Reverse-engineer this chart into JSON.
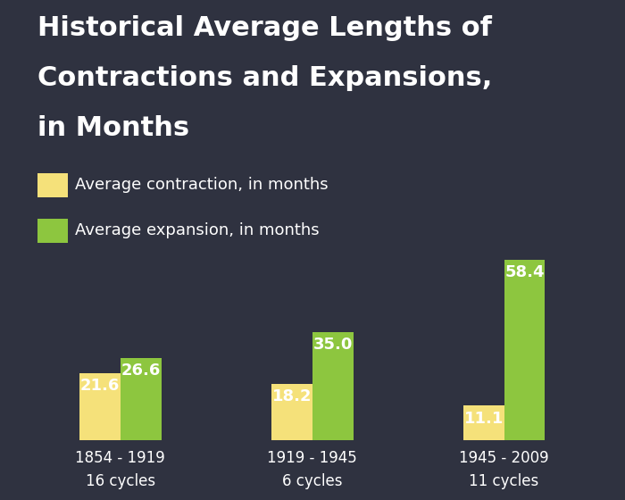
{
  "title_line1": "Historical Average Lengths of",
  "title_line2": "Contractions and Expansions,",
  "title_line3": "in Months",
  "background_color": "#2f3240",
  "bar_width": 0.32,
  "group_positions": [
    1.0,
    2.5,
    4.0
  ],
  "contraction_values": [
    21.6,
    18.2,
    11.1
  ],
  "expansion_values": [
    26.6,
    35.0,
    58.4
  ],
  "contraction_color": "#f5e17a",
  "expansion_color": "#8dc63f",
  "text_color": "#ffffff",
  "categories": [
    "1854 - 1919\n16 cycles",
    "1919 - 1945\n6 cycles",
    "1945 - 2009\n11 cycles"
  ],
  "legend_contraction": "Average contraction, in months",
  "legend_expansion": "Average expansion, in months",
  "title_fontsize": 22,
  "legend_fontsize": 13,
  "tick_fontsize": 12,
  "bar_label_fontsize": 13,
  "ylim": [
    0,
    68
  ]
}
